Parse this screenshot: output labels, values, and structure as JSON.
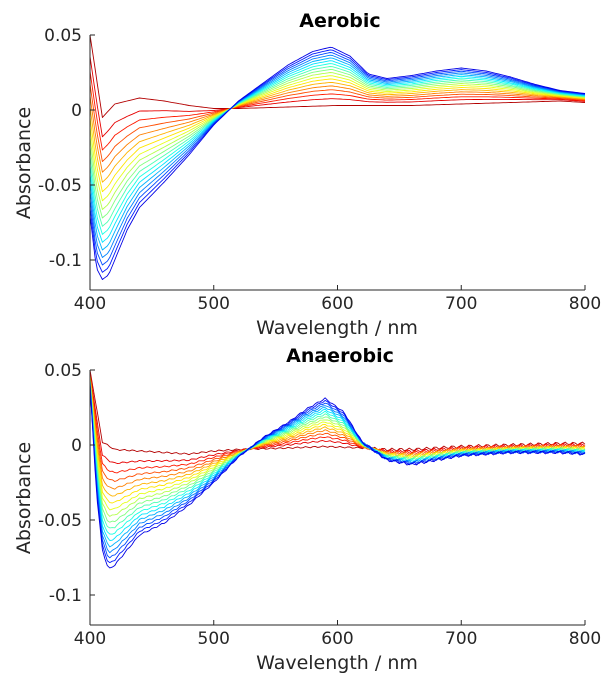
{
  "chart_data": [
    {
      "type": "line",
      "title": "Aerobic",
      "xlabel": "Wavelength / nm",
      "ylabel": "Absorbance",
      "xlim": [
        400,
        800
      ],
      "ylim": [
        -0.12,
        0.05
      ],
      "xticks": [
        400,
        500,
        600,
        700,
        800
      ],
      "yticks": [
        0.05,
        0,
        -0.05,
        -0.1
      ],
      "xtick_labels": [
        "400",
        "500",
        "600",
        "700",
        "800"
      ],
      "ytick_labels": [
        "0.05",
        "0",
        "-0.05",
        "-0.1"
      ],
      "series_count": 18,
      "colormap": "red-to-blue (jet, reversed)",
      "first_spectrum": {
        "x": [
          400,
          410,
          420,
          440,
          460,
          480,
          500,
          520,
          560,
          600,
          620,
          640,
          660,
          700,
          740,
          780,
          800
        ],
        "y": [
          0.05,
          -0.005,
          0.004,
          0.008,
          0.006,
          0.003,
          0.001,
          0.001,
          0.002,
          0.003,
          0.003,
          0.003,
          0.003,
          0.004,
          0.005,
          0.006,
          0.005
        ]
      },
      "last_spectrum": {
        "x": [
          400,
          405,
          410,
          415,
          420,
          430,
          440,
          460,
          480,
          500,
          520,
          540,
          560,
          580,
          595,
          610,
          625,
          640,
          660,
          680,
          700,
          720,
          740,
          760,
          780,
          800
        ],
        "y": [
          -0.07,
          -0.105,
          -0.113,
          -0.11,
          -0.1,
          -0.08,
          -0.065,
          -0.048,
          -0.03,
          -0.01,
          0.006,
          0.018,
          0.03,
          0.039,
          0.042,
          0.036,
          0.024,
          0.021,
          0.023,
          0.026,
          0.028,
          0.026,
          0.022,
          0.017,
          0.013,
          0.011
        ]
      }
    },
    {
      "type": "line",
      "title": "Anaerobic",
      "xlabel": "Wavelength / nm",
      "ylabel": "Absorbance",
      "xlim": [
        400,
        800
      ],
      "ylim": [
        -0.12,
        0.05
      ],
      "xticks": [
        400,
        500,
        600,
        700,
        800
      ],
      "yticks": [
        0.05,
        0,
        -0.05,
        -0.1
      ],
      "xtick_labels": [
        "400",
        "500",
        "600",
        "700",
        "800"
      ],
      "ytick_labels": [
        "0.05",
        "0",
        "-0.05",
        "-0.1"
      ],
      "series_count": 18,
      "colormap": "red-to-blue (jet, reversed)",
      "first_spectrum": {
        "x": [
          400,
          410,
          420,
          440,
          460,
          480,
          500,
          520,
          560,
          590,
          620,
          640,
          660,
          700,
          740,
          780,
          800
        ],
        "y": [
          0.05,
          0.002,
          -0.003,
          -0.004,
          -0.005,
          -0.006,
          -0.004,
          -0.003,
          -0.002,
          -0.001,
          -0.002,
          -0.003,
          -0.003,
          -0.001,
          0.0,
          0.001,
          0.001
        ]
      },
      "last_spectrum": {
        "x": [
          400,
          405,
          410,
          415,
          420,
          430,
          440,
          460,
          480,
          500,
          520,
          540,
          560,
          575,
          590,
          605,
          620,
          640,
          660,
          680,
          700,
          720,
          740,
          760,
          780,
          800
        ],
        "y": [
          0.04,
          -0.03,
          -0.07,
          -0.083,
          -0.08,
          -0.07,
          -0.06,
          -0.052,
          -0.04,
          -0.025,
          -0.008,
          0.005,
          0.015,
          0.024,
          0.031,
          0.022,
          0.002,
          -0.01,
          -0.013,
          -0.01,
          -0.007,
          -0.006,
          -0.005,
          -0.005,
          -0.005,
          -0.006
        ]
      }
    }
  ]
}
